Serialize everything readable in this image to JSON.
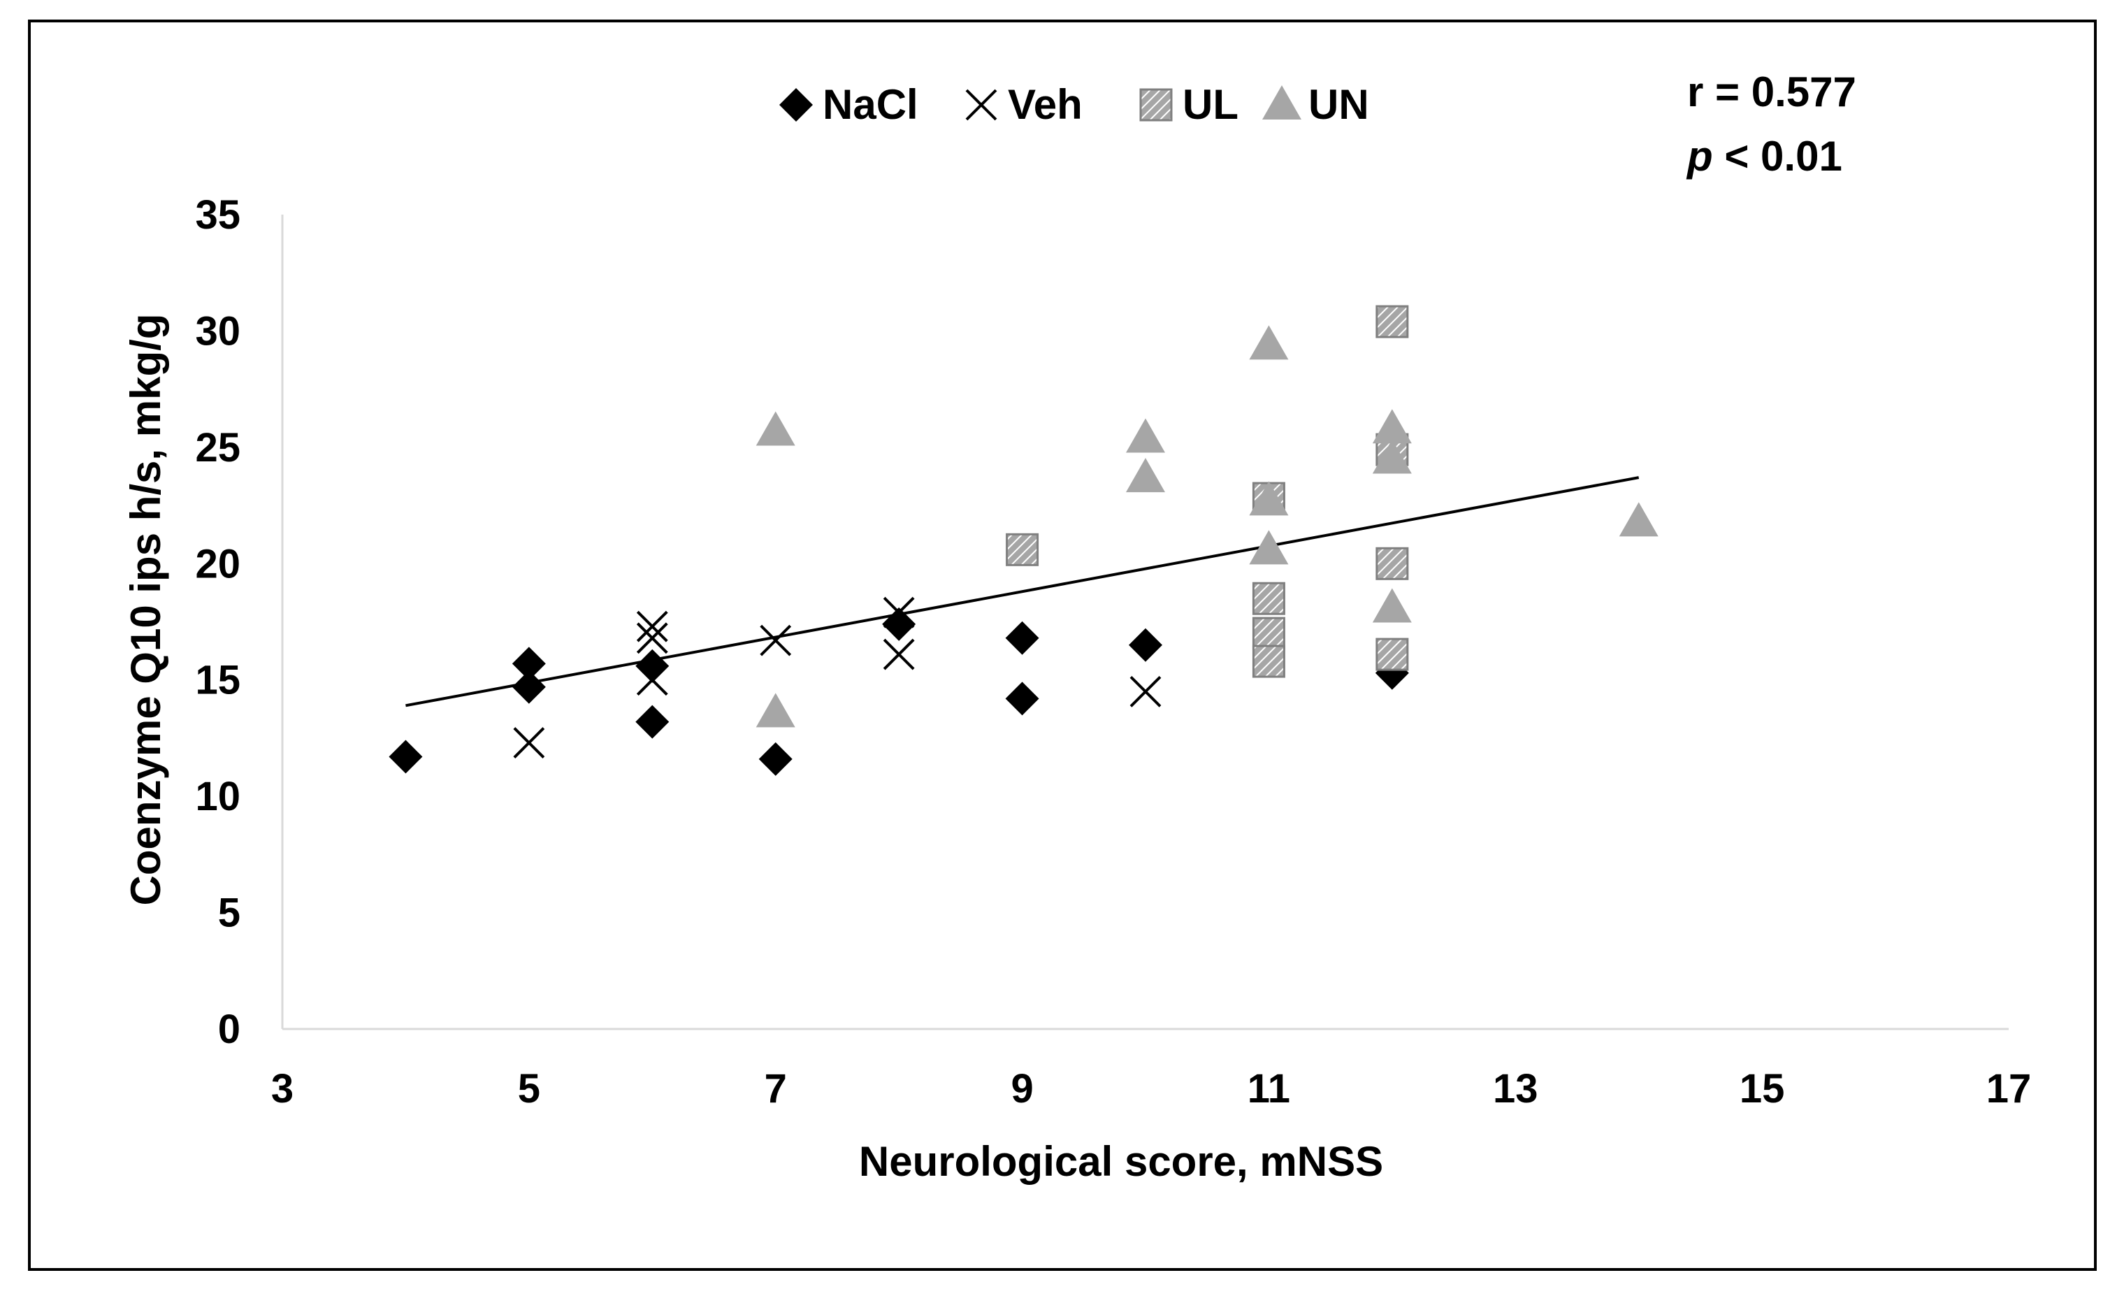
{
  "colors": {
    "nacl": "#000000",
    "veh": "#000000",
    "ul_fill": "#a6a6a6",
    "ul_hatch": "#ffffff",
    "un": "#a6a6a6",
    "axis": "#d9d9d9",
    "trend": "#000000"
  },
  "stats": {
    "r_text": "r = 0.577",
    "p_italic": "p",
    "p_rest": " < 0.01"
  },
  "chart_data": {
    "type": "scatter",
    "xlabel": "Neurological score, mNSS",
    "ylabel": "Coenzyme Q10 ips h/s, mkg/g",
    "xlim": [
      3,
      17
    ],
    "ylim": [
      0,
      35
    ],
    "xticks": [
      3,
      5,
      7,
      9,
      11,
      13,
      15,
      17
    ],
    "yticks": [
      0,
      5,
      10,
      15,
      20,
      25,
      30,
      35
    ],
    "legend": [
      "NaCl",
      "Veh",
      "UL",
      "UN"
    ],
    "legend_position": "top-center",
    "series": [
      {
        "name": "NaCl",
        "marker": "diamond",
        "x": [
          4,
          5,
          5,
          6,
          6,
          7,
          8,
          9,
          9,
          10,
          12
        ],
        "y": [
          11.7,
          15.7,
          14.7,
          15.6,
          13.2,
          11.6,
          17.4,
          16.8,
          14.2,
          16.5,
          15.3
        ]
      },
      {
        "name": "Veh",
        "marker": "x",
        "x": [
          5,
          6,
          6,
          6,
          7,
          8,
          8,
          10
        ],
        "y": [
          12.3,
          17.3,
          16.8,
          15.0,
          16.7,
          17.9,
          16.1,
          14.5
        ]
      },
      {
        "name": "UL",
        "marker": "hatched-square",
        "x": [
          9,
          11,
          11,
          11,
          11,
          12,
          12,
          12,
          12
        ],
        "y": [
          20.6,
          22.8,
          18.5,
          17.0,
          15.8,
          30.4,
          24.9,
          20.0,
          16.1
        ]
      },
      {
        "name": "UN",
        "marker": "triangle",
        "x": [
          7,
          7,
          10,
          10,
          11,
          11,
          11,
          12,
          12,
          12,
          14
        ],
        "y": [
          25.7,
          13.6,
          25.4,
          23.7,
          29.4,
          22.7,
          20.6,
          25.8,
          24.5,
          18.1,
          21.8
        ]
      }
    ],
    "trendline": {
      "x": [
        4,
        14
      ],
      "y": [
        13.9,
        23.7
      ]
    }
  }
}
